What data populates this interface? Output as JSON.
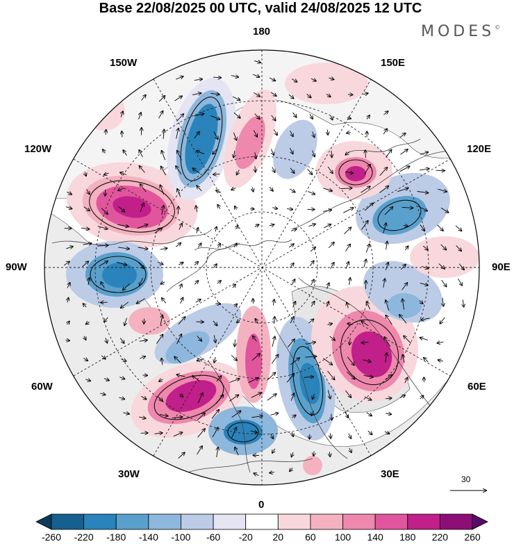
{
  "title": "Base 22/08/2025 00 UTC, valid 24/08/2025 12 UTC",
  "brand": "MODES",
  "brand_mark": "©",
  "longitude_labels": {
    "top": "180",
    "bottom": "0",
    "left": "90W",
    "right": "90E",
    "w150": "150W",
    "e150": "150E",
    "w120": "120W",
    "e120": "120E",
    "w60": "60W",
    "e60": "60E",
    "w30": "30W",
    "e30": "30E"
  },
  "reference_vector": {
    "value": "30"
  },
  "colorbar": {
    "labels": [
      "-260",
      "-220",
      "-180",
      "-140",
      "-100",
      "-60",
      "-20",
      "20",
      "60",
      "100",
      "140",
      "180",
      "220",
      "260"
    ],
    "colors": [
      "#0c3a5a",
      "#15608f",
      "#2a83ba",
      "#5aa0cc",
      "#8db7dc",
      "#bccbe6",
      "#e4e4f2",
      "#ffffff",
      "#f8d8dc",
      "#f4b2c0",
      "#ee88ac",
      "#e1559c",
      "#c11f8a",
      "#8e0e78",
      "#5a0a66"
    ]
  },
  "colors": {
    "land_gray": "#ececec",
    "coast": "#444444",
    "grid": "#222222"
  }
}
